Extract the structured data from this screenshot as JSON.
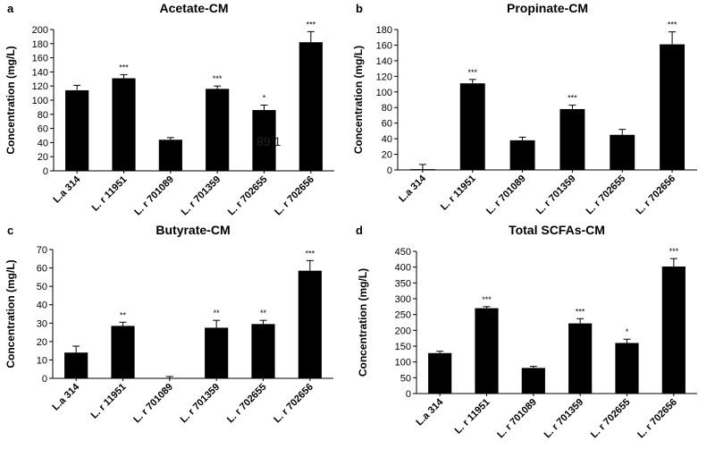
{
  "figure": {
    "stray_text": "89  1"
  },
  "chart_data": [
    {
      "panel": "a",
      "type": "bar",
      "title": "Acetate-CM",
      "ylabel": "Concentration (mg/L)",
      "xlabel": "",
      "categories": [
        "L.a 314",
        "L. r 11951",
        "L. r 701089",
        "L. r 701359",
        "L. r 702655",
        "L. r 702656"
      ],
      "values": [
        114,
        131,
        44,
        116,
        86,
        182
      ],
      "errors": [
        7,
        5,
        3,
        4,
        7,
        15
      ],
      "significance": [
        "",
        "***",
        "",
        "***",
        "*",
        "***"
      ],
      "ylim": [
        0,
        200
      ],
      "yticks": [
        0,
        20,
        40,
        60,
        80,
        100,
        120,
        140,
        160,
        180,
        200
      ],
      "grid": false,
      "color": "#000000"
    },
    {
      "panel": "b",
      "type": "bar",
      "title": "Propinate-CM",
      "ylabel": "Concentration (mg/L)",
      "xlabel": "",
      "categories": [
        "L.a 314",
        "L. r 11951",
        "L. r 701089",
        "L. r 701359",
        "L. r 702655",
        "L. r 702656"
      ],
      "values": [
        1,
        111,
        38,
        78,
        45,
        161
      ],
      "errors": [
        6,
        5,
        4,
        5,
        7,
        16
      ],
      "significance": [
        "",
        "***",
        "",
        "***",
        "",
        "***"
      ],
      "ylim": [
        0,
        180
      ],
      "yticks": [
        0,
        20,
        40,
        60,
        80,
        100,
        120,
        140,
        160,
        180
      ],
      "grid": false,
      "color": "#000000"
    },
    {
      "panel": "c",
      "type": "bar",
      "title": "Butyrate-CM",
      "ylabel": "Concentration (mg/L)",
      "xlabel": "",
      "categories": [
        "L.a 314",
        "L. r 11951",
        "L. r 701089",
        "L. r 701359",
        "L. r 702655",
        "L. r 702656"
      ],
      "values": [
        14,
        28.5,
        0,
        27.5,
        29.5,
        58.5
      ],
      "errors": [
        3.5,
        2,
        1,
        4,
        2,
        5.5
      ],
      "significance": [
        "",
        "**",
        "",
        "**",
        "**",
        "***"
      ],
      "ylim": [
        0,
        70
      ],
      "yticks": [
        0,
        10,
        20,
        30,
        40,
        50,
        60,
        70
      ],
      "grid": false,
      "color": "#000000"
    },
    {
      "panel": "d",
      "type": "bar",
      "title": "Total SCFAs-CM",
      "ylabel": "Concentration (mg/L)",
      "xlabel": "",
      "categories": [
        "L.a 314",
        "L. r 11951",
        "L. r 701089",
        "L. r 701359",
        "L. r 702655",
        "L. r 702656"
      ],
      "values": [
        128,
        270,
        81,
        222,
        160,
        402
      ],
      "errors": [
        6,
        5,
        5,
        15,
        12,
        25
      ],
      "significance": [
        "",
        "***",
        "",
        "***",
        "*",
        "***"
      ],
      "ylim": [
        0,
        450
      ],
      "yticks": [
        0,
        50,
        100,
        150,
        200,
        250,
        300,
        350,
        400,
        450
      ],
      "grid": false,
      "color": "#000000"
    }
  ]
}
